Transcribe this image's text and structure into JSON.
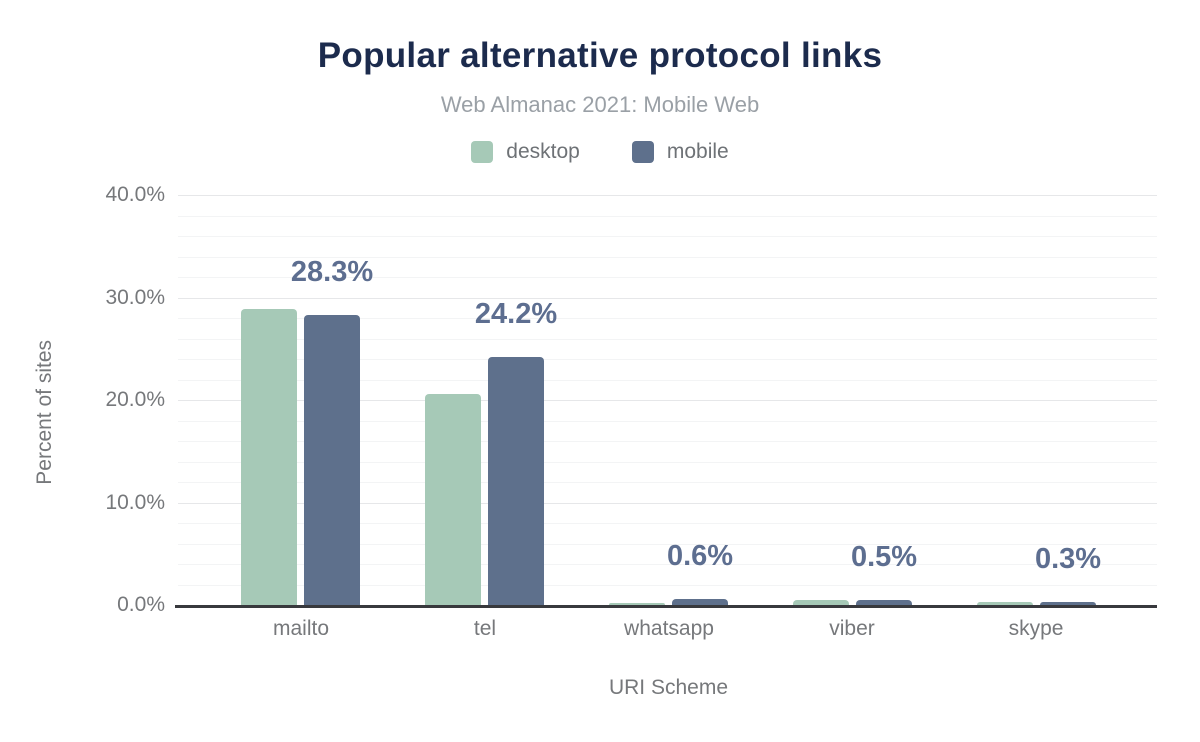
{
  "chart_data": {
    "type": "bar",
    "title": "Popular alternative protocol links",
    "subtitle": "Web Almanac 2021: Mobile Web",
    "xlabel": "URI Scheme",
    "ylabel": "Percent of sites",
    "categories": [
      "mailto",
      "tel",
      "whatsapp",
      "viber",
      "skype"
    ],
    "series": [
      {
        "name": "desktop",
        "color": "#a6c9b7",
        "values": [
          28.9,
          20.6,
          0.2,
          0.5,
          0.3
        ]
      },
      {
        "name": "mobile",
        "color": "#5e708c",
        "values": [
          28.3,
          24.2,
          0.6,
          0.5,
          0.3
        ]
      }
    ],
    "data_labels": {
      "on_series": "mobile",
      "values": [
        "28.3%",
        "24.2%",
        "0.6%",
        "0.5%",
        "0.3%"
      ]
    },
    "ylim": [
      0,
      40
    ],
    "yticks": [
      {
        "value": 0,
        "label": "0.0%"
      },
      {
        "value": 10,
        "label": "10.0%"
      },
      {
        "value": 20,
        "label": "20.0%"
      },
      {
        "value": 30,
        "label": "30.0%"
      },
      {
        "value": 40,
        "label": "40.0%"
      }
    ],
    "grid": {
      "major_step": 10,
      "minor_step": 2
    },
    "legend_position": "top"
  },
  "colors": {
    "background": "#ffffff",
    "title_text": "#1c2b4d",
    "subtitle_text": "#9aa0a6",
    "axis_text": "#76787b",
    "legend_text": "#6e7276",
    "data_label_text": "#5d6e90",
    "axis_line": "#38393d",
    "grid_major": "#e6e7e9",
    "grid_minor": "#f3f4f5"
  }
}
